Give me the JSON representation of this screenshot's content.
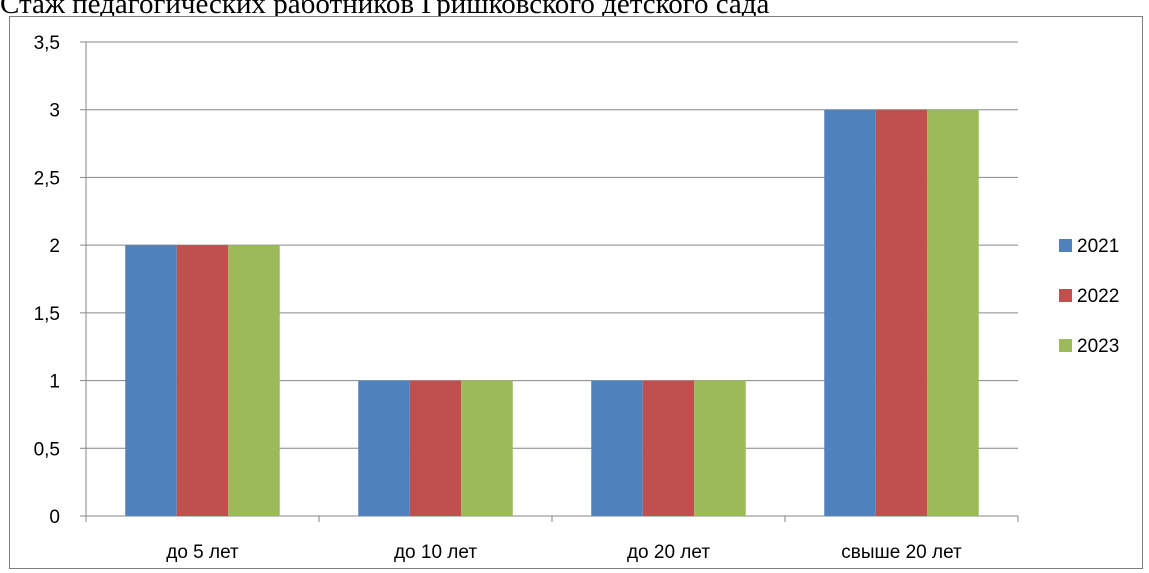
{
  "chart_data": {
    "type": "bar",
    "title": "Стаж педагогических работников Гришковского детского сада",
    "categories": [
      "до 5 лет",
      "до 10 лет",
      "до 20 лет",
      "свыше 20 лет"
    ],
    "series": [
      {
        "name": "2021",
        "values": [
          2,
          1,
          1,
          3
        ],
        "color": "#4f81bd"
      },
      {
        "name": "2022",
        "values": [
          2,
          1,
          1,
          3
        ],
        "color": "#c0504d"
      },
      {
        "name": "2023",
        "values": [
          2,
          1,
          1,
          3
        ],
        "color": "#9bbb59"
      }
    ],
    "y_ticks": [
      "0",
      "0,5",
      "1",
      "1,5",
      "2",
      "2,5",
      "3",
      "3,5"
    ],
    "ylim": [
      0,
      3.5
    ],
    "grid": true,
    "legend": "right"
  }
}
